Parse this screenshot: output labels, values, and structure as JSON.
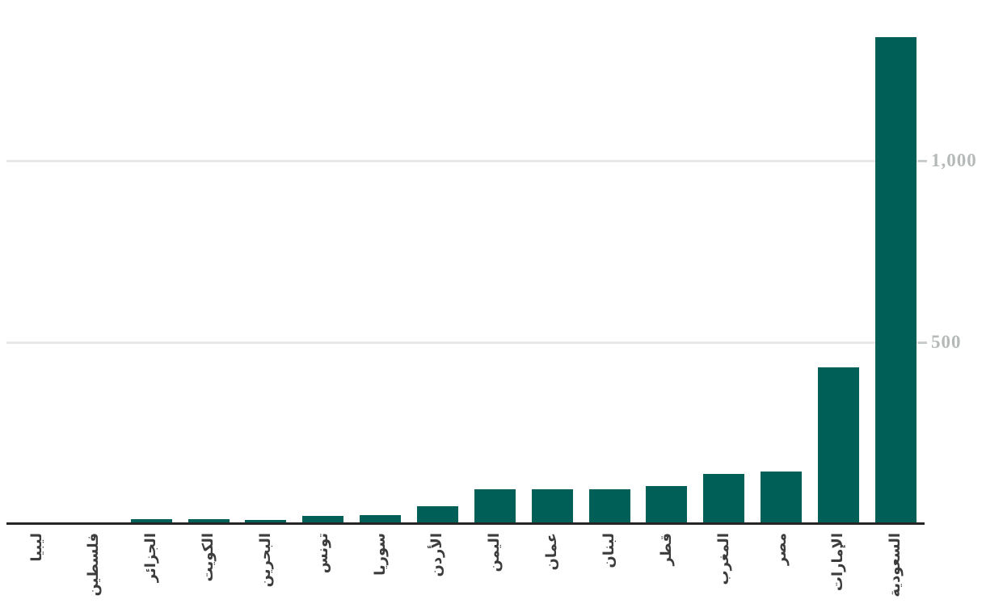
{
  "chart": {
    "background": "#ffffff",
    "bar_color": "#005f56",
    "axis_line_color": "#262626",
    "gridline_color": "#e8e8e8",
    "tick_color": "#c8cccc",
    "y_label_color": "#b5b9b9",
    "x_label_color": "#3c3c3c"
  },
  "chart_data": {
    "type": "bar",
    "title": "",
    "xlabel": "",
    "ylabel": "",
    "categories": [
      "ليبيا",
      "فلسطين",
      "الجزائر",
      "الكويت",
      "البحرين",
      "تونس",
      "سوريا",
      "الأردن",
      "اليمن",
      "عمان",
      "لبنان",
      "قطر",
      "المغرب",
      "مصر",
      "الإمارات",
      "السعودية"
    ],
    "values": [
      0,
      1,
      8,
      8,
      7,
      17,
      20,
      44,
      91,
      92,
      90,
      100,
      133,
      140,
      426,
      1335
    ],
    "ylim": [
      0,
      1400
    ],
    "yticks": [
      {
        "value": 500,
        "label": "500"
      },
      {
        "value": 1000,
        "label": "1,000"
      }
    ],
    "grid": "horizontal",
    "legend": "none",
    "y_axis_position": "right",
    "x_label_rotation": -90
  }
}
